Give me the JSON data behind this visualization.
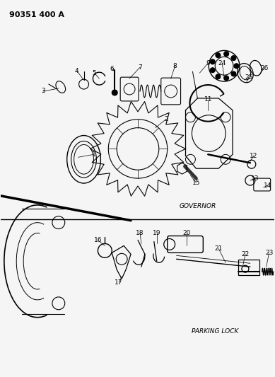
{
  "title": "90351 400 A",
  "bg_color": "#f5f5f5",
  "text_color": "#000000",
  "governor_label": "GOVERNOR",
  "parking_label": "PARKING LOCK",
  "fig_width": 3.89,
  "fig_height": 5.33,
  "dpi": 100
}
